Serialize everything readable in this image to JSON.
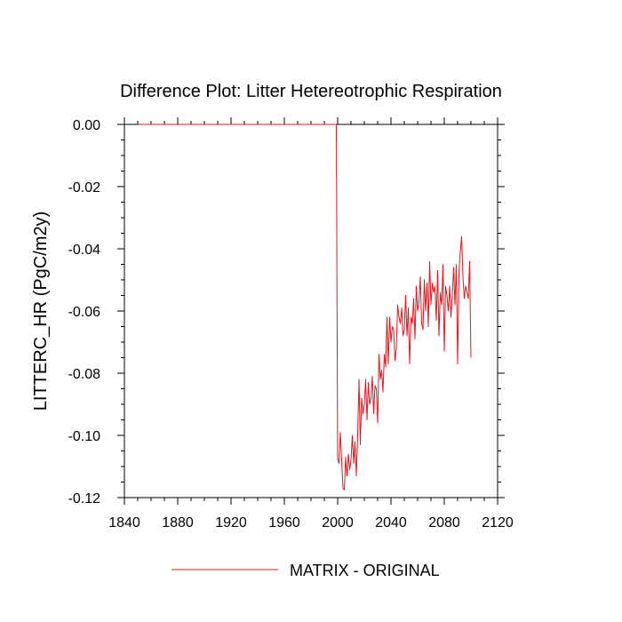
{
  "chart_data": {
    "type": "line",
    "title": "Difference Plot: Litter Hetereotrophic Respiration",
    "xlabel": "",
    "ylabel": "LITTERC_HR  (PgC/m2y)",
    "xlim": [
      1840,
      2120
    ],
    "ylim": [
      -0.12,
      0.0
    ],
    "x_ticks": [
      1840,
      1880,
      1920,
      1960,
      2000,
      2040,
      2080,
      2120
    ],
    "x_tick_labels": [
      "1840",
      "1880",
      "1920",
      "1960",
      "2000",
      "2040",
      "2080",
      "2120"
    ],
    "y_ticks": [
      0.0,
      -0.02,
      -0.04,
      -0.06,
      -0.08,
      -0.1,
      -0.12
    ],
    "y_tick_labels": [
      "0.00",
      "-0.02",
      "-0.04",
      "-0.06",
      "-0.08",
      "-0.10",
      "-0.12"
    ],
    "legend_position": "bottom-center",
    "series": [
      {
        "name": "MATRIX - ORIGINAL",
        "color": "#e8141c",
        "x": [
          1850,
          1998,
          1999,
          2000,
          2001,
          2002,
          2003,
          2004,
          2005,
          2006,
          2007,
          2008,
          2009,
          2010,
          2011,
          2012,
          2013,
          2014,
          2015,
          2016,
          2017,
          2018,
          2019,
          2020,
          2021,
          2022,
          2023,
          2024,
          2025,
          2026,
          2027,
          2028,
          2029,
          2030,
          2031,
          2032,
          2033,
          2034,
          2035,
          2036,
          2037,
          2038,
          2039,
          2040,
          2041,
          2042,
          2043,
          2044,
          2045,
          2046,
          2047,
          2048,
          2049,
          2050,
          2051,
          2052,
          2053,
          2054,
          2055,
          2056,
          2057,
          2058,
          2059,
          2060,
          2061,
          2062,
          2063,
          2064,
          2065,
          2066,
          2067,
          2068,
          2069,
          2070,
          2071,
          2072,
          2073,
          2074,
          2075,
          2076,
          2077,
          2078,
          2079,
          2080,
          2081,
          2082,
          2083,
          2084,
          2085,
          2086,
          2087,
          2088,
          2089,
          2090,
          2091,
          2092,
          2093,
          2094,
          2095,
          2096,
          2097,
          2098,
          2099,
          2100
        ],
        "y": [
          0.0,
          0.0,
          0.0,
          -0.1075,
          -0.109,
          -0.099,
          -0.108,
          -0.117,
          -0.1175,
          -0.107,
          -0.113,
          -0.106,
          -0.111,
          -0.108,
          -0.1,
          -0.109,
          -0.102,
          -0.113,
          -0.1,
          -0.082,
          -0.103,
          -0.088,
          -0.093,
          -0.09,
          -0.082,
          -0.095,
          -0.083,
          -0.09,
          -0.088,
          -0.081,
          -0.093,
          -0.084,
          -0.085,
          -0.096,
          -0.074,
          -0.082,
          -0.079,
          -0.086,
          -0.074,
          -0.078,
          -0.062,
          -0.077,
          -0.062,
          -0.07,
          -0.065,
          -0.066,
          -0.076,
          -0.072,
          -0.058,
          -0.062,
          -0.064,
          -0.059,
          -0.068,
          -0.066,
          -0.055,
          -0.068,
          -0.059,
          -0.077,
          -0.062,
          -0.064,
          -0.056,
          -0.069,
          -0.052,
          -0.06,
          -0.057,
          -0.049,
          -0.064,
          -0.066,
          -0.05,
          -0.06,
          -0.051,
          -0.065,
          -0.044,
          -0.058,
          -0.051,
          -0.054,
          -0.052,
          -0.063,
          -0.047,
          -0.068,
          -0.054,
          -0.058,
          -0.045,
          -0.073,
          -0.052,
          -0.055,
          -0.06,
          -0.052,
          -0.062,
          -0.055,
          -0.046,
          -0.058,
          -0.045,
          -0.077,
          -0.048,
          -0.041,
          -0.036,
          -0.049,
          -0.056,
          -0.052,
          -0.054,
          -0.056,
          -0.044,
          -0.075
        ]
      }
    ]
  }
}
